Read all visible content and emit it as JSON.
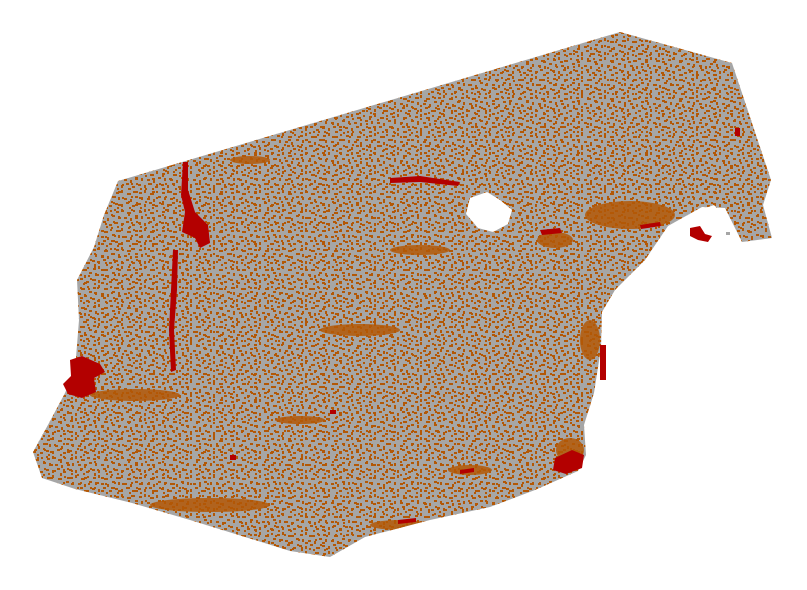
{
  "map": {
    "kind": "raster classification map",
    "background_color": "#ffffff",
    "classes": [
      {
        "name": "gray-class",
        "color": "#a6a6a6"
      },
      {
        "name": "orange-class",
        "color": "#b35806"
      },
      {
        "name": "red-class",
        "color": "#b30000"
      }
    ],
    "holes_color": "#ffffff"
  }
}
